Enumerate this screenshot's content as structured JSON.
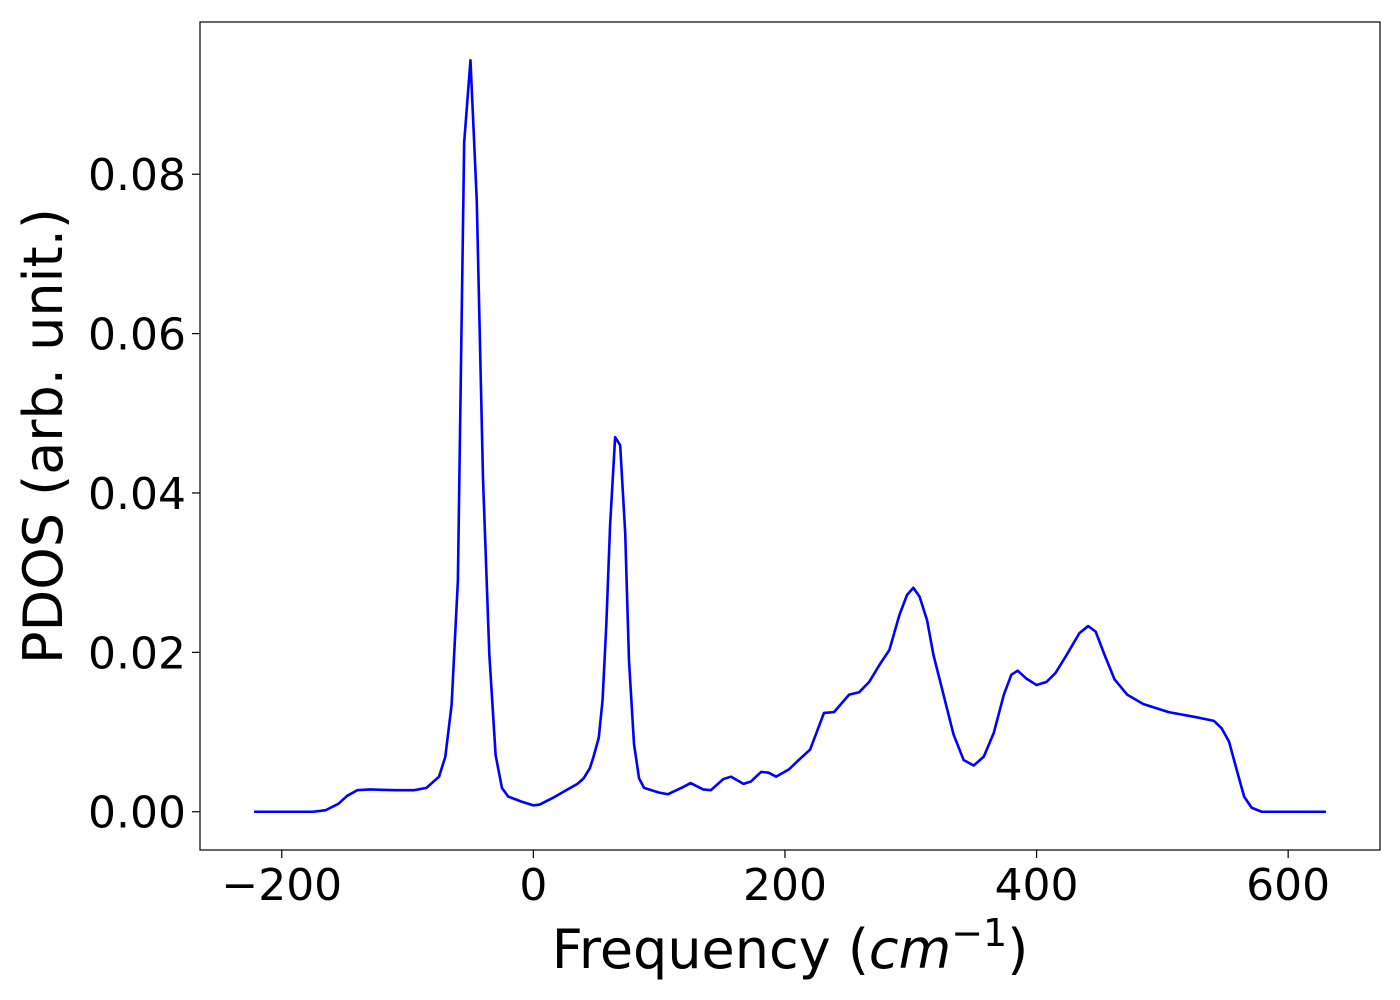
{
  "chart_data": {
    "type": "line",
    "xlabel_parts": [
      "Frequency (",
      "cm",
      "−1",
      ")"
    ],
    "ylabel": "PDOS (arb. unit.)",
    "xlim": [
      -265,
      673
    ],
    "ylim": [
      -0.0048,
      0.0991
    ],
    "xticks": [
      {
        "value": -200,
        "label": "−200"
      },
      0,
      200,
      400,
      600
    ],
    "yticks": [
      {
        "value": 0,
        "label": "0.00"
      },
      {
        "value": 0.02,
        "label": "0.02"
      },
      {
        "value": 0.04,
        "label": "0.04"
      },
      {
        "value": 0.06,
        "label": "0.06"
      },
      {
        "value": 0.08,
        "label": "0.08"
      }
    ],
    "grid": false,
    "series": [
      {
        "color": "#0000ff",
        "x": [
          -222,
          -175,
          -165,
          -155,
          -148,
          -140,
          -130,
          -110,
          -95,
          -85,
          -75,
          -70,
          -65,
          -60,
          -55,
          -50,
          -45,
          -40,
          -35,
          -30,
          -25,
          -20,
          -10,
          0,
          5,
          15,
          25,
          35,
          40,
          45,
          48,
          52,
          55,
          58,
          61,
          65,
          69,
          73,
          76,
          80,
          84,
          88,
          100,
          107,
          119,
          125,
          135,
          141,
          151,
          157,
          167,
          173,
          181,
          187,
          193,
          203,
          211,
          220,
          231,
          239,
          251,
          259,
          267,
          275,
          283,
          291,
          297,
          302,
          307,
          313,
          318,
          326,
          334,
          342,
          350,
          358,
          366,
          374,
          380,
          385,
          392,
          400,
          408,
          415,
          424,
          434,
          441,
          447,
          454,
          462,
          472,
          485,
          505,
          529,
          541,
          547,
          553,
          559,
          565,
          571,
          579,
          630
        ],
        "values": [
          0,
          0,
          0.0002,
          0.001,
          0.002,
          0.0027,
          0.0028,
          0.0027,
          0.0027,
          0.003,
          0.0044,
          0.0069,
          0.0134,
          0.029,
          0.084,
          0.0943,
          0.0767,
          0.0416,
          0.0197,
          0.0071,
          0.003,
          0.0019,
          0.0013,
          0.0008,
          0.0009,
          0.0017,
          0.0026,
          0.0035,
          0.0042,
          0.0055,
          0.007,
          0.0093,
          0.014,
          0.0235,
          0.036,
          0.047,
          0.046,
          0.035,
          0.019,
          0.0085,
          0.0042,
          0.003,
          0.0024,
          0.0022,
          0.0031,
          0.0036,
          0.0028,
          0.0027,
          0.0041,
          0.0044,
          0.0035,
          0.0038,
          0.005,
          0.0049,
          0.0044,
          0.0053,
          0.0065,
          0.0078,
          0.0124,
          0.0125,
          0.0147,
          0.015,
          0.0163,
          0.0184,
          0.0203,
          0.0247,
          0.0272,
          0.0281,
          0.027,
          0.024,
          0.0197,
          0.0147,
          0.0097,
          0.0065,
          0.0058,
          0.0069,
          0.0099,
          0.0147,
          0.0172,
          0.0177,
          0.0167,
          0.0159,
          0.0163,
          0.0174,
          0.0197,
          0.0224,
          0.0233,
          0.0226,
          0.0197,
          0.0166,
          0.0147,
          0.0135,
          0.0125,
          0.0118,
          0.0114,
          0.0105,
          0.0088,
          0.0053,
          0.0019,
          0.0005,
          0,
          0
        ]
      }
    ]
  }
}
